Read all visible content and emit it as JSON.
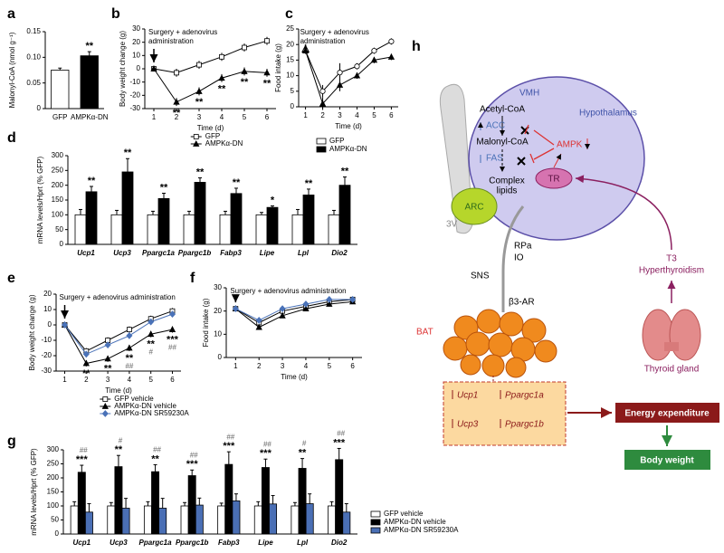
{
  "chart_data": [
    {
      "type": "bar",
      "label": "a",
      "categories": [
        "GFP",
        "AMPKα-DN"
      ],
      "values": [
        0.075,
        0.103
      ],
      "errors": [
        0.004,
        0.008
      ],
      "colors": [
        "#ffffff",
        "#000000"
      ],
      "stars": [
        null,
        "**"
      ],
      "ylabel": "Malonyl-CoA (nmol g⁻¹)",
      "ylim": [
        0,
        0.15
      ],
      "yticks": [
        0,
        0.05,
        {
          "value": 0.1,
          "label": "0.10"
        },
        0.15
      ]
    },
    {
      "type": "line",
      "label": "b",
      "x": [
        1,
        2,
        3,
        4,
        5,
        6
      ],
      "xlim": [
        0.6,
        6.4
      ],
      "xticks": [
        1,
        2,
        3,
        4,
        5,
        6
      ],
      "ylim": [
        -30,
        30
      ],
      "yticks": [
        -30,
        -20,
        -10,
        0,
        10,
        20,
        30
      ],
      "xlabel": "Time (d)",
      "ylabel": "Body weight change (g)",
      "annotation_lines": [
        "Surgery + adenovirus",
        "administration"
      ],
      "legend": "below",
      "series": [
        {
          "name": "GFP",
          "color": "#000000",
          "marker": "square",
          "marker_fill": "#ffffff",
          "values": [
            0,
            -3,
            3,
            9,
            16,
            21
          ],
          "errors": [
            2,
            3,
            3,
            3,
            3,
            3
          ]
        },
        {
          "name": "AMPKα-DN",
          "color": "#000000",
          "marker": "triangle",
          "marker_fill": "#000000",
          "values": [
            0,
            -25,
            -17,
            -7,
            -2,
            -3
          ],
          "errors": [
            2,
            3,
            3,
            3,
            3,
            3
          ],
          "stars": [
            null,
            "**",
            "**",
            "**",
            "**",
            "**"
          ]
        }
      ]
    },
    {
      "type": "line",
      "label": "c",
      "x": [
        1,
        2,
        3,
        4,
        5,
        6
      ],
      "xlim": [
        0.6,
        6.4
      ],
      "xticks": [
        1,
        2,
        3,
        4,
        5,
        6
      ],
      "ylim": [
        0,
        25
      ],
      "yticks": [
        0,
        5,
        10,
        15,
        20,
        25
      ],
      "xlabel": "Time (d)",
      "ylabel": "Food intake (g)",
      "annotation_lines": [
        "Surgery + adenovirus",
        "administration"
      ],
      "series": [
        {
          "name": "GFP",
          "color": "#000000",
          "marker": "circle",
          "marker_fill": "#ffffff",
          "values": [
            18,
            5,
            11,
            13,
            18,
            21
          ],
          "errors": [
            1,
            2,
            3,
            1,
            1,
            1
          ]
        },
        {
          "name": "AMPKα-DN",
          "color": "#000000",
          "marker": "triangle",
          "marker_fill": "#000000",
          "values": [
            18,
            1,
            7,
            10,
            15,
            16
          ],
          "errors": [
            1,
            2,
            2,
            1,
            1,
            1
          ]
        }
      ]
    },
    {
      "type": "bar",
      "label": "d",
      "categories": [
        "Ucp1",
        "Ucp3",
        "Ppargc1a",
        "Ppargc1b",
        "Fabp3",
        "Lipe",
        "Lpl",
        "Dio2"
      ],
      "ylabel": "mRNA levels/Hprt (% GFP)",
      "ylim": [
        0,
        300
      ],
      "yticks": [
        0,
        50,
        100,
        150,
        200,
        250,
        300
      ],
      "legend": "upper right",
      "stars": [
        "**",
        "**",
        "**",
        "**",
        "**",
        "*",
        "**",
        "**"
      ],
      "series": [
        {
          "name": "GFP",
          "color": "#ffffff",
          "values": [
            100,
            100,
            100,
            100,
            100,
            100,
            100,
            100
          ],
          "errors": [
            18,
            15,
            12,
            12,
            12,
            8,
            18,
            15
          ]
        },
        {
          "name": "AMPKα-DN",
          "color": "#000000",
          "values": [
            178,
            245,
            155,
            210,
            172,
            125,
            167,
            200
          ],
          "errors": [
            18,
            45,
            18,
            15,
            18,
            5,
            20,
            28
          ]
        }
      ]
    },
    {
      "type": "line",
      "label": "e",
      "x": [
        1,
        2,
        3,
        4,
        5,
        6
      ],
      "xlim": [
        0.6,
        6.4
      ],
      "xticks": [
        1,
        2,
        3,
        4,
        5,
        6
      ],
      "ylim": [
        -30,
        20
      ],
      "yticks": [
        -30,
        -20,
        -10,
        0,
        10,
        20
      ],
      "xlabel": "Time (d)",
      "ylabel": "Body weight change (g)",
      "annotation_lines": [
        "Surgery + adenovirus administration"
      ],
      "legend": "below",
      "series": [
        {
          "name": "GFP vehicle",
          "color": "#000000",
          "marker": "square",
          "marker_fill": "#ffffff",
          "values": [
            0,
            -17,
            -10,
            -3,
            4,
            9
          ],
          "errors": [
            1,
            2,
            2,
            2,
            2,
            2
          ]
        },
        {
          "name": "AMPKα-DN vehicle",
          "color": "#000000",
          "marker": "triangle",
          "marker_fill": "#000000",
          "values": [
            0,
            -25,
            -22,
            -15,
            -6,
            -3
          ],
          "errors": [
            1,
            2,
            2,
            2,
            2,
            2
          ],
          "stars": [
            null,
            "**",
            "**",
            "**",
            "**",
            "***"
          ],
          "hashes": [
            null,
            null,
            null,
            "##",
            "#",
            "##"
          ]
        },
        {
          "name": "AMPKα-DN SR59230A",
          "color": "#4a72b8",
          "marker": "diamond",
          "marker_fill": "#4a72b8",
          "values": [
            0,
            -19,
            -13,
            -7,
            2,
            7
          ],
          "errors": [
            1,
            2,
            2,
            2,
            2,
            2
          ]
        }
      ]
    },
    {
      "type": "line",
      "label": "f",
      "x": [
        1,
        2,
        3,
        4,
        5,
        6
      ],
      "xlim": [
        0.6,
        6.4
      ],
      "xticks": [
        1,
        2,
        3,
        4,
        5,
        6
      ],
      "ylim": [
        0,
        30
      ],
      "yticks": [
        0,
        10,
        20,
        30
      ],
      "xlabel": "Time (d)",
      "ylabel": "Food intake (g)",
      "annotation_lines": [
        "Surgery + adenovirus administration"
      ],
      "series": [
        {
          "name": "GFP vehicle",
          "color": "#000000",
          "marker": "square",
          "marker_fill": "#ffffff",
          "values": [
            21,
            15,
            20,
            22,
            24,
            25
          ],
          "errors": [
            1,
            1,
            1,
            1,
            1,
            1
          ]
        },
        {
          "name": "AMPKα-DN vehicle",
          "color": "#000000",
          "marker": "triangle",
          "marker_fill": "#000000",
          "values": [
            21,
            13,
            18,
            21,
            23,
            24
          ],
          "errors": [
            1,
            1,
            1,
            1,
            1,
            1
          ]
        },
        {
          "name": "AMPKα-DN SR59230A",
          "color": "#4a72b8",
          "marker": "diamond",
          "marker_fill": "#4a72b8",
          "values": [
            21,
            16,
            21,
            23,
            25,
            25
          ],
          "errors": [
            1,
            1,
            1,
            1,
            1,
            1
          ]
        }
      ]
    },
    {
      "type": "bar",
      "label": "g",
      "categories": [
        "Ucp1",
        "Ucp3",
        "Ppargc1a",
        "Ppargc1b",
        "Fabp3",
        "Lipe",
        "Lpl",
        "Dio2"
      ],
      "ylabel": "mRNA levels/Hprt (% GFP)",
      "ylim": [
        0,
        300
      ],
      "yticks": [
        0,
        50,
        100,
        150,
        200,
        250,
        300
      ],
      "legend": "right",
      "stars": [
        "***",
        "**",
        "**",
        "***",
        "***",
        "***",
        "**",
        "***"
      ],
      "hashes": [
        "##",
        "#",
        "##",
        "##",
        "##",
        "##",
        "#",
        "##"
      ],
      "series": [
        {
          "name": "GFP vehicle",
          "color": "#ffffff",
          "values": [
            100,
            100,
            100,
            100,
            100,
            100,
            100,
            100
          ],
          "errors": [
            15,
            12,
            15,
            12,
            10,
            15,
            12,
            15
          ]
        },
        {
          "name": "AMPKα-DN vehicle",
          "color": "#000000",
          "values": [
            220,
            240,
            222,
            208,
            248,
            237,
            234,
            265
          ],
          "errors": [
            25,
            40,
            25,
            20,
            45,
            30,
            35,
            40
          ]
        },
        {
          "name": "AMPKα-DN SR59230A",
          "color": "#4a6fb5",
          "values": [
            78,
            92,
            92,
            103,
            118,
            107,
            108,
            78
          ],
          "errors": [
            30,
            35,
            35,
            25,
            25,
            30,
            35,
            30
          ]
        }
      ]
    }
  ],
  "diagram": {
    "label": "h",
    "vmh": "VMH",
    "hypothalamus": "Hypothalamus",
    "acetyl": "Acetyl-CoA",
    "acc": "ACC",
    "malonyl": "Malonyl-CoA",
    "fas": "FAS",
    "complex_lines": [
      "Complex",
      "lipids"
    ],
    "ampk": "AMPK",
    "tr": "TR",
    "arc": "ARC",
    "third_ventricle": "3V",
    "rpa": "RPa",
    "io": "IO",
    "sns": "SNS",
    "b3ar": "β3-AR",
    "bat": "BAT",
    "genes": [
      "Ucp1",
      "Ppargc1a",
      "Ucp3",
      "Ppargc1b"
    ],
    "energy": "Energy expenditure",
    "body_weight": "Body weight",
    "t3": "T3",
    "hyper": "Hyperthyroidism",
    "thyroid": "Thyroid gland"
  }
}
